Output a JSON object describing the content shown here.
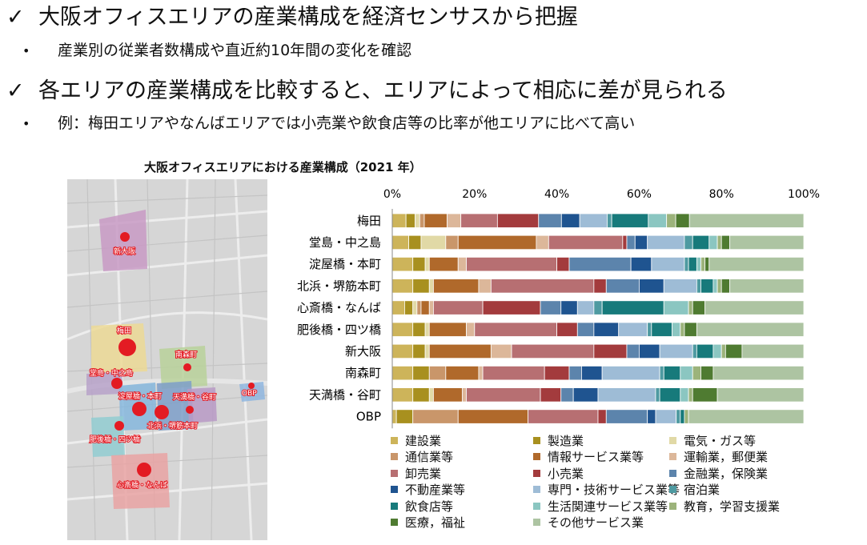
{
  "bullets": {
    "main1": "大阪オフィスエリアの産業構成を経済センサスから把握",
    "sub1": "産業別の従業者数構成や直近約10年間の変化を確認",
    "main2": "各エリアの産業構成を比較すると、エリアによって相応に差が見られる",
    "sub2": "例：梅田エリアやなんばエリアでは小売業や飲食店等の比率が他エリアに比べて高い",
    "check_glyph": "✓",
    "dot_glyph": "•"
  },
  "map": {
    "labels": [
      "新大阪",
      "梅田",
      "南森町",
      "堂島・中之島",
      "淀屋橋・本町",
      "天満橋・谷町",
      "北浜・堺筋本町",
      "OBP",
      "肥後橋・四ツ橋",
      "心斎橋・なんば"
    ]
  },
  "chart_data": {
    "type": "bar",
    "orientation": "horizontal",
    "stacked": true,
    "title": "大阪オフィスエリアにおける産業構成（2021 年）",
    "xlim": [
      0,
      100
    ],
    "xticks": [
      "0%",
      "20%",
      "40%",
      "60%",
      "80%",
      "100%"
    ],
    "grid": false,
    "legend_position": "bottom",
    "categories": [
      "梅田",
      "堂島・中之島",
      "淀屋橋・本町",
      "北浜・堺筋本町",
      "心斎橋・なんば",
      "肥後橋・四ツ橋",
      "新大阪",
      "南森町",
      "天満橋・谷町",
      "OBP"
    ],
    "series": [
      {
        "name": "建設業",
        "color": "#cdb45a",
        "values": [
          3,
          4,
          5,
          5,
          3,
          5,
          5,
          5,
          5,
          1
        ]
      },
      {
        "name": "製造業",
        "color": "#a8901f",
        "values": [
          2,
          3,
          3,
          4,
          2,
          3,
          3,
          4,
          4,
          4
        ]
      },
      {
        "name": "電気・ガス等",
        "color": "#e1d9a6",
        "values": [
          1,
          6,
          1,
          1,
          1,
          1,
          1,
          0,
          1,
          0
        ]
      },
      {
        "name": "通信業等",
        "color": "#c9966a",
        "values": [
          1,
          3,
          0,
          0,
          1,
          0,
          0,
          4,
          0,
          11
        ]
      },
      {
        "name": "情報サービス業等",
        "color": "#b0692b",
        "values": [
          5,
          19,
          7,
          11,
          2,
          9,
          15,
          8,
          7,
          17
        ]
      },
      {
        "name": "運輸業，郵便業",
        "color": "#dcb79a",
        "values": [
          3,
          3,
          2,
          3,
          1,
          2,
          5,
          1,
          1,
          0
        ]
      },
      {
        "name": "卸売業",
        "color": "#b76f72",
        "values": [
          8,
          18,
          22,
          25,
          12,
          20,
          20,
          15,
          18,
          17
        ]
      },
      {
        "name": "小売業",
        "color": "#a33b3d",
        "values": [
          9,
          1,
          3,
          3,
          14,
          5,
          8,
          6,
          5,
          2
        ]
      },
      {
        "name": "金融業，保険業",
        "color": "#5c84ac",
        "values": [
          5,
          2,
          15,
          8,
          5,
          4,
          3,
          3,
          3,
          10
        ]
      },
      {
        "name": "不動産業等",
        "color": "#1f5490",
        "values": [
          4,
          3,
          5,
          6,
          4,
          6,
          5,
          5,
          6,
          2
        ]
      },
      {
        "name": "専門・技術サービス業等",
        "color": "#9ebcd6",
        "values": [
          6,
          9,
          8,
          8,
          4,
          7,
          8,
          14,
          14,
          5
        ]
      },
      {
        "name": "宿泊業",
        "color": "#4e9aa1",
        "values": [
          1,
          2,
          1,
          1,
          2,
          1,
          1,
          1,
          1,
          1
        ]
      },
      {
        "name": "飲食店等",
        "color": "#177a7b",
        "values": [
          8,
          4,
          2,
          3,
          15,
          5,
          4,
          4,
          5,
          1
        ]
      },
      {
        "name": "生活関連サービス業等",
        "color": "#8bc6c1",
        "values": [
          4,
          2,
          1,
          1,
          6,
          2,
          2,
          3,
          2,
          0
        ]
      },
      {
        "name": "教育，学習支援業",
        "color": "#9cb37b",
        "values": [
          2,
          1,
          1,
          1,
          1,
          1,
          1,
          2,
          1,
          1
        ]
      },
      {
        "name": "医療，福祉",
        "color": "#4f7b31",
        "values": [
          3,
          2,
          1,
          2,
          3,
          3,
          4,
          3,
          6,
          0
        ]
      },
      {
        "name": "その他サービス業",
        "color": "#adc4a2",
        "values": [
          25,
          18,
          23,
          18,
          24,
          26,
          15,
          22,
          21,
          28
        ]
      }
    ]
  }
}
